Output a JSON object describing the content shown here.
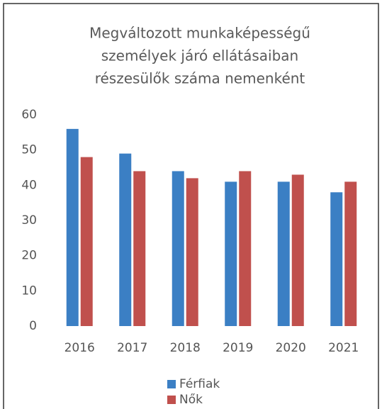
{
  "chart_data": {
    "type": "bar",
    "title": [
      "Megváltozott munkaképességű",
      "személyek járó ellátásaiban",
      "részesülők száma nemenként"
    ],
    "categories": [
      "2016",
      "2017",
      "2018",
      "2019",
      "2020",
      "2021"
    ],
    "series": [
      {
        "name": "Férfiak",
        "color": "#3b7fc4",
        "values": [
          56,
          49,
          44,
          41,
          41,
          38
        ]
      },
      {
        "name": "Nők",
        "color": "#c0504d",
        "values": [
          48,
          44,
          42,
          44,
          43,
          41
        ]
      }
    ],
    "ylim": [
      0,
      60
    ],
    "yticks": [
      0,
      10,
      20,
      30,
      40,
      50,
      60
    ],
    "grid": false,
    "legend": "bottom"
  }
}
